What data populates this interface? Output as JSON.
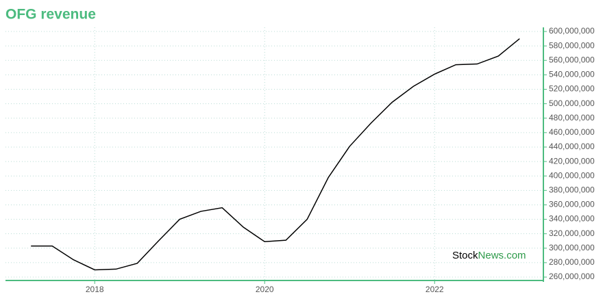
{
  "chart_data": {
    "type": "line",
    "title": "OFG revenue",
    "x": [
      2017.25,
      2017.5,
      2017.75,
      2018.0,
      2018.25,
      2018.5,
      2018.75,
      2019.0,
      2019.25,
      2019.5,
      2019.75,
      2020.0,
      2020.25,
      2020.5,
      2020.75,
      2021.0,
      2021.25,
      2021.5,
      2021.75,
      2022.0,
      2022.25,
      2022.5,
      2022.75,
      2023.0
    ],
    "series": [
      {
        "name": "OFG revenue",
        "color": "#000000",
        "values": [
          303000000,
          303000000,
          284000000,
          270000000,
          271000000,
          279000000,
          310000000,
          340000000,
          351000000,
          356000000,
          329000000,
          309000000,
          311000000,
          340000000,
          398000000,
          441000000,
          473000000,
          502000000,
          524000000,
          541000000,
          554000000,
          555000000,
          566000000,
          590000000
        ]
      }
    ],
    "xlim": [
      2016.95,
      2023.28
    ],
    "xticks": [
      2018,
      2020,
      2022
    ],
    "ylim": [
      255300000,
      605700000
    ],
    "yticks": [
      {
        "value": 260000000,
        "label": "260,000,000"
      },
      {
        "value": 280000000,
        "label": "280,000,000"
      },
      {
        "value": 300000000,
        "label": "300,000,000"
      },
      {
        "value": 320000000,
        "label": "320,000,000"
      },
      {
        "value": 340000000,
        "label": "340,000,000"
      },
      {
        "value": 360000000,
        "label": "360,000,000"
      },
      {
        "value": 380000000,
        "label": "380,000,000"
      },
      {
        "value": 400000000,
        "label": "400,000,000"
      },
      {
        "value": 420000000,
        "label": "420,000,000"
      },
      {
        "value": 440000000,
        "label": "440,000,000"
      },
      {
        "value": 460000000,
        "label": "460,000,000"
      },
      {
        "value": 480000000,
        "label": "480,000,000"
      },
      {
        "value": 500000000,
        "label": "500,000,000"
      },
      {
        "value": 520000000,
        "label": "520,000,000"
      },
      {
        "value": 540000000,
        "label": "540,000,000"
      },
      {
        "value": 560000000,
        "label": "560,000,000"
      },
      {
        "value": 580000000,
        "label": "580,000,000"
      },
      {
        "value": 600000000,
        "label": "600,000,000"
      }
    ],
    "grid": true,
    "watermark": {
      "stock": "Stock",
      "news": "News.com"
    }
  }
}
